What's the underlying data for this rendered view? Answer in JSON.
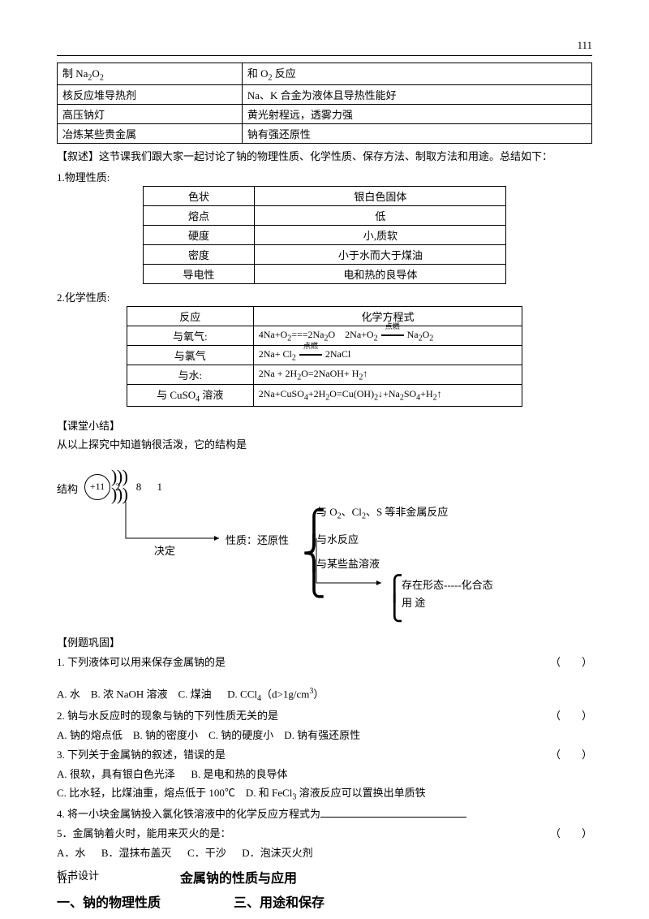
{
  "page_number": "111",
  "table1": {
    "rows": [
      [
        "制 Na<sub>2</sub>O<sub>2</sub>",
        "和 O<sub>2</sub> 反应"
      ],
      [
        "核反应堆导热剂",
        "Na、K 合金为液体且导热性能好"
      ],
      [
        "高压钠灯",
        "黄光射程远，透雾力强"
      ],
      [
        "冶炼某些贵金属",
        "钠有强还原性"
      ]
    ]
  },
  "narration_label": "【叙述】",
  "narration_text": "这节课我们跟大家一起讨论了钠的物理性质、化学性质、保存方法、制取方法和用途。总结如下：",
  "section1_label": "1.物理性质:",
  "table2": {
    "rows": [
      [
        "色状",
        "银白色固体"
      ],
      [
        "熔点",
        "低"
      ],
      [
        "硬度",
        "小,质软"
      ],
      [
        "密度",
        "小于水而大于煤油"
      ],
      [
        "导电性",
        "电和热的良导体"
      ]
    ]
  },
  "section2_label": "2.化学性质:",
  "table3": {
    "header": [
      "反应",
      "化学方程式"
    ],
    "rows": [
      [
        "与氧气:",
        "4Na+O<sub>2</sub>===2Na<sub>2</sub>O&nbsp;&nbsp;&nbsp;&nbsp;2Na+O<sub>2</sub>&nbsp;<span class='eq-arrow'><span class='top-label'>点燃</span><span class='line'></span></span>&nbsp;Na<sub>2</sub>O<sub>2</sub>"
      ],
      [
        "与氯气",
        "2Na+ Cl<sub>2</sub>&nbsp;<span class='eq-arrow'><span class='top-label'>点燃</span><span class='line'></span></span>&nbsp;2NaCl"
      ],
      [
        "与水:",
        "2Na + 2H<sub>2</sub>O=2NaOH+ H<sub>2</sub>↑"
      ],
      [
        "与 CuSO<sub>4</sub> 溶液",
        "2Na+CuSO<sub>4</sub>+2H<sub>2</sub>O=Cu(OH)<sub>2</sub>↓+Na<sub>2</sub>SO<sub>4</sub>+H<sub>2</sub>↑"
      ]
    ]
  },
  "summary_label": "【课堂小结】",
  "summary_text": "从以上探究中知道钠很活泼，它的结构是",
  "diagram": {
    "structure_label": "结构",
    "nucleus": "+11",
    "shells": "2  8  1",
    "determines": "决定",
    "property_label": "性质：还原性",
    "reactions": [
      "与 O<sub>2</sub>、Cl<sub>2</sub>、S 等非金属反应",
      "与水反应",
      "与某些盐溶液"
    ],
    "existence": "存在形态-----化合态",
    "usage": "用  途"
  },
  "exercises_label": "【例题巩固】",
  "questions": [
    {
      "q": "1. 下列液体可以用来保存金属钠的是",
      "opts": "A. 水&nbsp;&nbsp;&nbsp;&nbsp;B. 浓 NaOH 溶液&nbsp;&nbsp;&nbsp;&nbsp;C. 煤油&nbsp;&nbsp;&nbsp;&nbsp;&nbsp;&nbsp;D. CCl<sub>4</sub>（d>1g/cm<sup>3</sup>）",
      "paren": true,
      "blank_line_after": true
    },
    {
      "q": "2. 钠与水反应时的现象与钠的下列性质无关的是",
      "opts": "A. 钠的熔点低&nbsp;&nbsp;&nbsp;&nbsp;B. 钠的密度小&nbsp;&nbsp;&nbsp;&nbsp;C. 钠的硬度小&nbsp;&nbsp;&nbsp;&nbsp;D. 钠有强还原性",
      "paren": true
    },
    {
      "q": "3. 下列关于金属钠的叙述，错误的是",
      "opts": "A. 很软，具有银白色光泽&nbsp;&nbsp;&nbsp;&nbsp;&nbsp;&nbsp;B. 是电和热的良导体<br>C. 比水轻，比煤油重，熔点低于 100℃&nbsp;&nbsp;&nbsp;&nbsp;D. 和 FeCl<sub>3</sub> 溶液反应可以置换出单质铁",
      "paren": true
    },
    {
      "q": "4. 将一小块金属钠投入氯化铁溶液中的化学反应方程式为",
      "opts": "",
      "blank": true
    },
    {
      "q": "5．金属钠着火时，能用来灭火的是：",
      "opts": "A．水&nbsp;&nbsp;&nbsp;&nbsp;&nbsp;&nbsp;B．湿抹布盖灭&nbsp;&nbsp;&nbsp;&nbsp;&nbsp;&nbsp;C．干沙&nbsp;&nbsp;&nbsp;&nbsp;&nbsp;&nbsp;D．泡沫灭火剂",
      "paren": true
    }
  ],
  "board_design": "板书设计",
  "board_title": "金属钠的性质与应用",
  "board_left": "一、钠的物理性质",
  "board_right": "三、用途和保存"
}
